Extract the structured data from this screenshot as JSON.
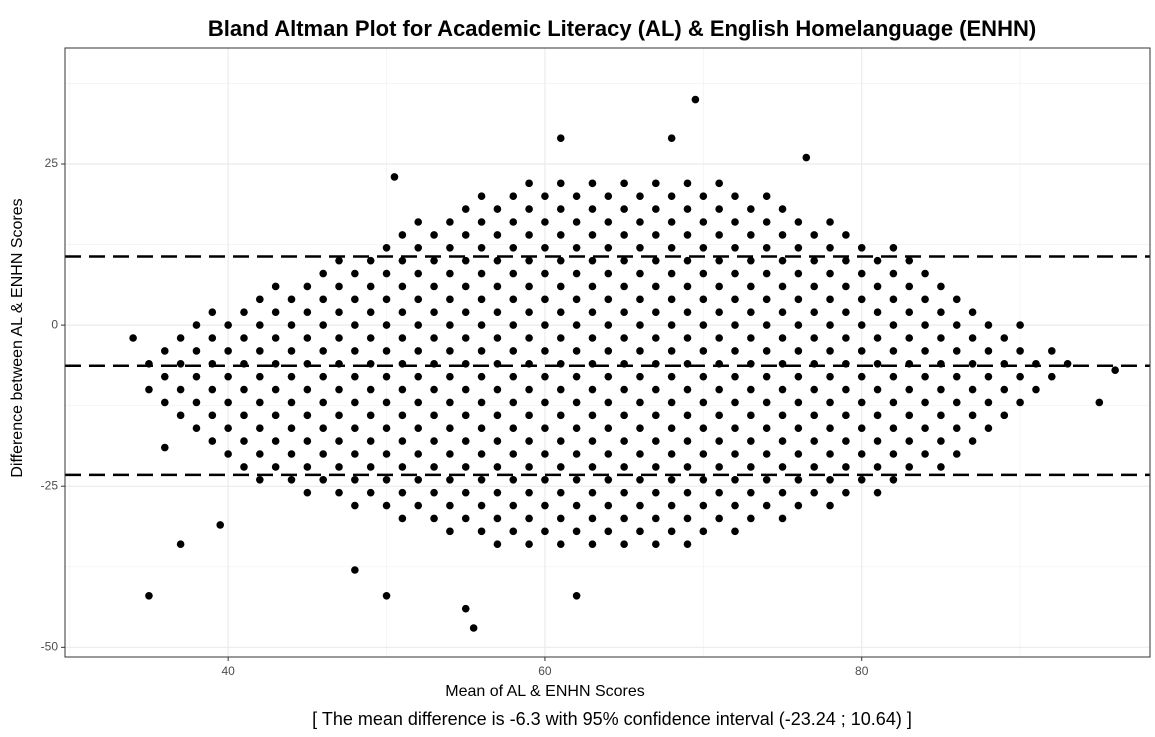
{
  "chart_data": {
    "type": "scatter",
    "title": "Bland Altman Plot for Academic Literacy (AL) & English Homelanguage (ENHN)",
    "caption": "[ The mean difference is -6.3 with 95% confidence interval (-23.24 ; 10.64) ]",
    "x_label": "Mean of AL & ENHN Scores",
    "y_label": "Difference between AL & ENHN Scores",
    "xlim": [
      29.7,
      98.2
    ],
    "ylim": [
      -51.5,
      43
    ],
    "xticks": [
      40,
      60,
      80
    ],
    "yticks": [
      -50,
      -25,
      0,
      25
    ],
    "xminor": [
      30,
      50,
      70,
      90
    ],
    "yminor": [
      -37.5,
      -12.5,
      12.5,
      37.5
    ],
    "grid": true,
    "color": "#000000",
    "hlines": [
      -23.24,
      -6.3,
      10.64
    ],
    "x": [
      59,
      61,
      63,
      65,
      67,
      69,
      71,
      56,
      58,
      60,
      62,
      64,
      66,
      68,
      70,
      72,
      74,
      55,
      57,
      59,
      61,
      63,
      65,
      67,
      69,
      71,
      73,
      75,
      52,
      54,
      56,
      58,
      60,
      62,
      64,
      66,
      68,
      70,
      72,
      74,
      76,
      78,
      51,
      53,
      55,
      57,
      59,
      61,
      63,
      65,
      67,
      69,
      71,
      73,
      75,
      77,
      79,
      50,
      52,
      54,
      56,
      58,
      60,
      62,
      64,
      66,
      68,
      70,
      72,
      74,
      76,
      78,
      80,
      82,
      47,
      49,
      51,
      53,
      55,
      57,
      59,
      61,
      63,
      65,
      67,
      69,
      71,
      73,
      75,
      77,
      79,
      81,
      83,
      46,
      48,
      50,
      52,
      54,
      56,
      58,
      60,
      62,
      64,
      66,
      68,
      70,
      72,
      74,
      76,
      78,
      80,
      82,
      84,
      43,
      45,
      47,
      49,
      51,
      53,
      55,
      57,
      59,
      61,
      63,
      65,
      67,
      69,
      71,
      73,
      75,
      77,
      79,
      81,
      83,
      85,
      42,
      44,
      46,
      48,
      50,
      52,
      54,
      56,
      58,
      60,
      62,
      64,
      66,
      68,
      70,
      72,
      74,
      76,
      78,
      80,
      82,
      84,
      86,
      39,
      41,
      43,
      45,
      47,
      49,
      51,
      53,
      55,
      57,
      59,
      61,
      63,
      65,
      67,
      69,
      71,
      73,
      75,
      77,
      79,
      81,
      83,
      85,
      87,
      38,
      40,
      42,
      44,
      46,
      48,
      50,
      52,
      54,
      56,
      58,
      60,
      62,
      64,
      66,
      68,
      70,
      72,
      74,
      76,
      78,
      80,
      82,
      84,
      86,
      88,
      90,
      37,
      39,
      41,
      43,
      45,
      47,
      49,
      51,
      53,
      55,
      57,
      59,
      61,
      63,
      65,
      67,
      69,
      71,
      73,
      75,
      77,
      79,
      81,
      83,
      85,
      87,
      89,
      36,
      38,
      40,
      42,
      44,
      46,
      48,
      50,
      52,
      54,
      56,
      58,
      60,
      62,
      64,
      66,
      68,
      70,
      72,
      74,
      76,
      78,
      80,
      82,
      84,
      86,
      88,
      90,
      92,
      35,
      37,
      39,
      41,
      43,
      45,
      47,
      49,
      51,
      53,
      55,
      57,
      59,
      61,
      63,
      65,
      67,
      69,
      71,
      73,
      75,
      77,
      79,
      81,
      83,
      85,
      87,
      89,
      91,
      93,
      36,
      38,
      40,
      42,
      44,
      46,
      48,
      50,
      52,
      54,
      56,
      58,
      60,
      62,
      64,
      66,
      68,
      70,
      72,
      74,
      76,
      78,
      80,
      82,
      84,
      86,
      88,
      90,
      92,
      35,
      37,
      39,
      41,
      43,
      45,
      47,
      49,
      51,
      53,
      55,
      57,
      59,
      61,
      63,
      65,
      67,
      69,
      71,
      73,
      75,
      77,
      79,
      81,
      83,
      85,
      87,
      89,
      91,
      36,
      38,
      40,
      42,
      44,
      46,
      48,
      50,
      52,
      54,
      56,
      58,
      60,
      62,
      64,
      66,
      68,
      70,
      72,
      74,
      76,
      78,
      80,
      82,
      84,
      86,
      88,
      90,
      37,
      39,
      41,
      43,
      45,
      47,
      49,
      51,
      53,
      55,
      57,
      59,
      61,
      63,
      65,
      67,
      69,
      71,
      73,
      75,
      77,
      79,
      81,
      83,
      85,
      87,
      89,
      38,
      40,
      42,
      44,
      46,
      48,
      50,
      52,
      54,
      56,
      58,
      60,
      62,
      64,
      66,
      68,
      70,
      72,
      74,
      76,
      78,
      80,
      82,
      84,
      86,
      88,
      39,
      41,
      43,
      45,
      47,
      49,
      51,
      53,
      55,
      57,
      59,
      61,
      63,
      65,
      67,
      69,
      71,
      73,
      75,
      77,
      79,
      81,
      83,
      85,
      87,
      40,
      42,
      44,
      46,
      48,
      50,
      52,
      54,
      56,
      58,
      60,
      62,
      64,
      66,
      68,
      70,
      72,
      74,
      76,
      78,
      80,
      82,
      84,
      86,
      41,
      43,
      45,
      47,
      49,
      51,
      53,
      55,
      57,
      59,
      61,
      63,
      65,
      67,
      69,
      71,
      73,
      75,
      77,
      79,
      81,
      83,
      85,
      42,
      44,
      46,
      48,
      50,
      52,
      54,
      56,
      58,
      60,
      62,
      64,
      66,
      68,
      70,
      72,
      74,
      76,
      78,
      80,
      82,
      45,
      47,
      49,
      51,
      53,
      55,
      57,
      59,
      61,
      63,
      65,
      67,
      69,
      71,
      73,
      75,
      77,
      79,
      81,
      48,
      50,
      52,
      54,
      56,
      58,
      60,
      62,
      64,
      66,
      68,
      70,
      72,
      74,
      76,
      78,
      51,
      53,
      55,
      57,
      59,
      61,
      63,
      65,
      67,
      69,
      71,
      73,
      75,
      54,
      56,
      58,
      60,
      62,
      64,
      66,
      68,
      70,
      72,
      57,
      59,
      61,
      63,
      65,
      67,
      69,
      35,
      37,
      39.5,
      48,
      50,
      55,
      55.5,
      62,
      69.5,
      61,
      68,
      76.5,
      50.5,
      34,
      96,
      95,
      36
    ],
    "values": [
      22,
      22,
      22,
      22,
      22,
      22,
      22,
      20,
      20,
      20,
      20,
      20,
      20,
      20,
      20,
      20,
      20,
      18,
      18,
      18,
      18,
      18,
      18,
      18,
      18,
      18,
      18,
      18,
      16,
      16,
      16,
      16,
      16,
      16,
      16,
      16,
      16,
      16,
      16,
      16,
      16,
      16,
      14,
      14,
      14,
      14,
      14,
      14,
      14,
      14,
      14,
      14,
      14,
      14,
      14,
      14,
      14,
      12,
      12,
      12,
      12,
      12,
      12,
      12,
      12,
      12,
      12,
      12,
      12,
      12,
      12,
      12,
      12,
      12,
      10,
      10,
      10,
      10,
      10,
      10,
      10,
      10,
      10,
      10,
      10,
      10,
      10,
      10,
      10,
      10,
      10,
      10,
      10,
      8,
      8,
      8,
      8,
      8,
      8,
      8,
      8,
      8,
      8,
      8,
      8,
      8,
      8,
      8,
      8,
      8,
      8,
      8,
      8,
      6,
      6,
      6,
      6,
      6,
      6,
      6,
      6,
      6,
      6,
      6,
      6,
      6,
      6,
      6,
      6,
      6,
      6,
      6,
      6,
      6,
      6,
      4,
      4,
      4,
      4,
      4,
      4,
      4,
      4,
      4,
      4,
      4,
      4,
      4,
      4,
      4,
      4,
      4,
      4,
      4,
      4,
      4,
      4,
      4,
      2,
      2,
      2,
      2,
      2,
      2,
      2,
      2,
      2,
      2,
      2,
      2,
      2,
      2,
      2,
      2,
      2,
      2,
      2,
      2,
      2,
      2,
      2,
      2,
      2,
      0,
      0,
      0,
      0,
      0,
      0,
      0,
      0,
      0,
      0,
      0,
      0,
      0,
      0,
      0,
      0,
      0,
      0,
      0,
      0,
      0,
      0,
      0,
      0,
      0,
      0,
      0,
      -2,
      -2,
      -2,
      -2,
      -2,
      -2,
      -2,
      -2,
      -2,
      -2,
      -2,
      -2,
      -2,
      -2,
      -2,
      -2,
      -2,
      -2,
      -2,
      -2,
      -2,
      -2,
      -2,
      -2,
      -2,
      -2,
      -2,
      -4,
      -4,
      -4,
      -4,
      -4,
      -4,
      -4,
      -4,
      -4,
      -4,
      -4,
      -4,
      -4,
      -4,
      -4,
      -4,
      -4,
      -4,
      -4,
      -4,
      -4,
      -4,
      -4,
      -4,
      -4,
      -4,
      -4,
      -4,
      -4,
      -6,
      -6,
      -6,
      -6,
      -6,
      -6,
      -6,
      -6,
      -6,
      -6,
      -6,
      -6,
      -6,
      -6,
      -6,
      -6,
      -6,
      -6,
      -6,
      -6,
      -6,
      -6,
      -6,
      -6,
      -6,
      -6,
      -6,
      -6,
      -6,
      -6,
      -8,
      -8,
      -8,
      -8,
      -8,
      -8,
      -8,
      -8,
      -8,
      -8,
      -8,
      -8,
      -8,
      -8,
      -8,
      -8,
      -8,
      -8,
      -8,
      -8,
      -8,
      -8,
      -8,
      -8,
      -8,
      -8,
      -8,
      -8,
      -8,
      -10,
      -10,
      -10,
      -10,
      -10,
      -10,
      -10,
      -10,
      -10,
      -10,
      -10,
      -10,
      -10,
      -10,
      -10,
      -10,
      -10,
      -10,
      -10,
      -10,
      -10,
      -10,
      -10,
      -10,
      -10,
      -10,
      -10,
      -10,
      -10,
      -12,
      -12,
      -12,
      -12,
      -12,
      -12,
      -12,
      -12,
      -12,
      -12,
      -12,
      -12,
      -12,
      -12,
      -12,
      -12,
      -12,
      -12,
      -12,
      -12,
      -12,
      -12,
      -12,
      -12,
      -12,
      -12,
      -12,
      -12,
      -14,
      -14,
      -14,
      -14,
      -14,
      -14,
      -14,
      -14,
      -14,
      -14,
      -14,
      -14,
      -14,
      -14,
      -14,
      -14,
      -14,
      -14,
      -14,
      -14,
      -14,
      -14,
      -14,
      -14,
      -14,
      -14,
      -14,
      -16,
      -16,
      -16,
      -16,
      -16,
      -16,
      -16,
      -16,
      -16,
      -16,
      -16,
      -16,
      -16,
      -16,
      -16,
      -16,
      -16,
      -16,
      -16,
      -16,
      -16,
      -16,
      -16,
      -16,
      -16,
      -16,
      -18,
      -18,
      -18,
      -18,
      -18,
      -18,
      -18,
      -18,
      -18,
      -18,
      -18,
      -18,
      -18,
      -18,
      -18,
      -18,
      -18,
      -18,
      -18,
      -18,
      -18,
      -18,
      -18,
      -18,
      -18,
      -20,
      -20,
      -20,
      -20,
      -20,
      -20,
      -20,
      -20,
      -20,
      -20,
      -20,
      -20,
      -20,
      -20,
      -20,
      -20,
      -20,
      -20,
      -20,
      -20,
      -20,
      -20,
      -20,
      -20,
      -22,
      -22,
      -22,
      -22,
      -22,
      -22,
      -22,
      -22,
      -22,
      -22,
      -22,
      -22,
      -22,
      -22,
      -22,
      -22,
      -22,
      -22,
      -22,
      -22,
      -22,
      -22,
      -22,
      -24,
      -24,
      -24,
      -24,
      -24,
      -24,
      -24,
      -24,
      -24,
      -24,
      -24,
      -24,
      -24,
      -24,
      -24,
      -24,
      -24,
      -24,
      -24,
      -24,
      -24,
      -26,
      -26,
      -26,
      -26,
      -26,
      -26,
      -26,
      -26,
      -26,
      -26,
      -26,
      -26,
      -26,
      -26,
      -26,
      -26,
      -26,
      -26,
      -26,
      -28,
      -28,
      -28,
      -28,
      -28,
      -28,
      -28,
      -28,
      -28,
      -28,
      -28,
      -28,
      -28,
      -28,
      -28,
      -28,
      -30,
      -30,
      -30,
      -30,
      -30,
      -30,
      -30,
      -30,
      -30,
      -30,
      -30,
      -30,
      -30,
      -32,
      -32,
      -32,
      -32,
      -32,
      -32,
      -32,
      -32,
      -32,
      -32,
      -34,
      -34,
      -34,
      -34,
      -34,
      -34,
      -34,
      -42,
      -34,
      -31,
      -38,
      -42,
      -44,
      -47,
      -42,
      35,
      29,
      29,
      26,
      23,
      -2,
      -7,
      -12,
      -19
    ]
  }
}
